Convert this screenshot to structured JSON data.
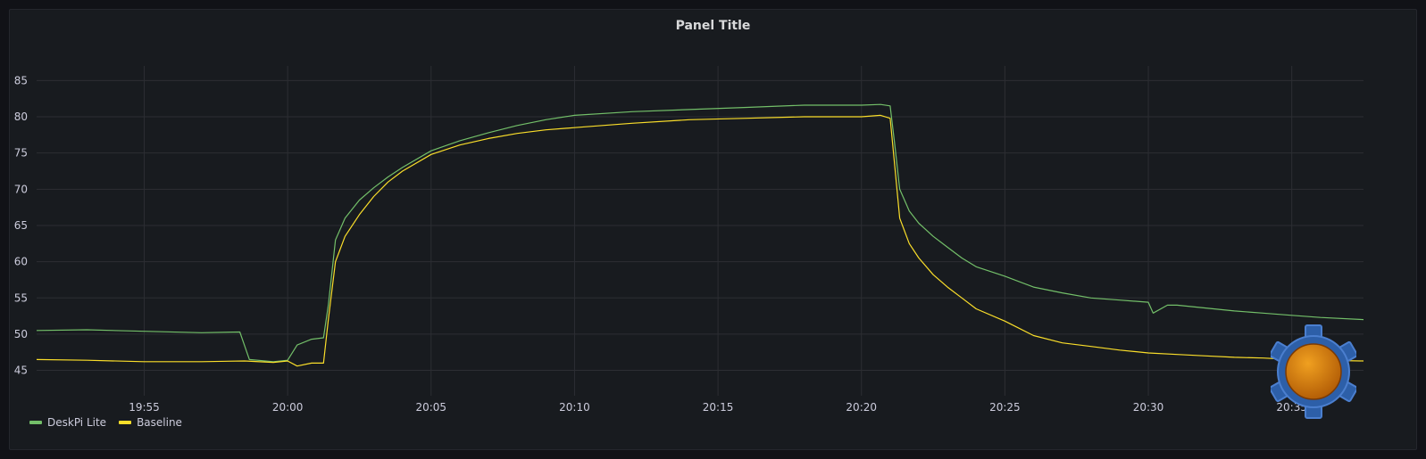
{
  "panel": {
    "title": "Panel Title"
  },
  "colors": {
    "background": "#181b1f",
    "grid": "#2c2e33",
    "axis_text": "#ccccdc",
    "series_deskpi": "#73bf69",
    "series_baseline": "#fade2a"
  },
  "chart_data": {
    "type": "line",
    "title": "Panel Title",
    "xlabel": "",
    "ylabel": "",
    "x_ticks": [
      "19:55",
      "20:00",
      "20:05",
      "20:10",
      "20:15",
      "20:20",
      "20:25",
      "20:30",
      "20:35"
    ],
    "y_ticks": [
      45,
      50,
      55,
      60,
      65,
      70,
      75,
      80,
      85
    ],
    "xlim": [
      "19:51:15",
      "20:37:30"
    ],
    "ylim": [
      41.5,
      88
    ],
    "grid": true,
    "legend_position": "bottom-left",
    "series": [
      {
        "name": "DeskPi Lite",
        "color": "#73bf69",
        "points": [
          [
            "19:51:15",
            50.5
          ],
          [
            "19:53:00",
            50.6
          ],
          [
            "19:55:00",
            50.4
          ],
          [
            "19:57:00",
            50.2
          ],
          [
            "19:58:20",
            50.3
          ],
          [
            "19:58:40",
            46.5
          ],
          [
            "19:59:30",
            46.2
          ],
          [
            "20:00:00",
            46.4
          ],
          [
            "20:00:20",
            48.5
          ],
          [
            "20:00:50",
            49.3
          ],
          [
            "20:01:15",
            49.5
          ],
          [
            "20:01:25",
            54.0
          ],
          [
            "20:01:40",
            63.0
          ],
          [
            "20:02:00",
            66.0
          ],
          [
            "20:02:30",
            68.5
          ],
          [
            "20:03:00",
            70.2
          ],
          [
            "20:03:30",
            71.7
          ],
          [
            "20:04:00",
            73.0
          ],
          [
            "20:05:00",
            75.3
          ],
          [
            "20:06:00",
            76.7
          ],
          [
            "20:07:00",
            77.8
          ],
          [
            "20:08:00",
            78.8
          ],
          [
            "20:09:00",
            79.6
          ],
          [
            "20:10:00",
            80.2
          ],
          [
            "20:12:00",
            80.7
          ],
          [
            "20:14:00",
            81.0
          ],
          [
            "20:16:00",
            81.3
          ],
          [
            "20:18:00",
            81.6
          ],
          [
            "20:20:00",
            81.6
          ],
          [
            "20:20:40",
            81.7
          ],
          [
            "20:21:00",
            81.5
          ],
          [
            "20:21:10",
            76.0
          ],
          [
            "20:21:20",
            70.0
          ],
          [
            "20:21:40",
            67.0
          ],
          [
            "20:22:00",
            65.3
          ],
          [
            "20:22:30",
            63.5
          ],
          [
            "20:23:00",
            62.0
          ],
          [
            "20:23:30",
            60.5
          ],
          [
            "20:24:00",
            59.3
          ],
          [
            "20:25:00",
            58.0
          ],
          [
            "20:26:00",
            56.5
          ],
          [
            "20:27:00",
            55.7
          ],
          [
            "20:28:00",
            55.0
          ],
          [
            "20:29:00",
            54.7
          ],
          [
            "20:30:00",
            54.4
          ],
          [
            "20:30:10",
            52.9
          ],
          [
            "20:30:40",
            54.0
          ],
          [
            "20:31:00",
            54.0
          ],
          [
            "20:32:00",
            53.6
          ],
          [
            "20:33:00",
            53.2
          ],
          [
            "20:34:00",
            52.9
          ],
          [
            "20:35:00",
            52.6
          ],
          [
            "20:36:00",
            52.3
          ],
          [
            "20:37:30",
            52.0
          ]
        ]
      },
      {
        "name": "Baseline",
        "color": "#fade2a",
        "points": [
          [
            "19:51:15",
            46.5
          ],
          [
            "19:53:00",
            46.4
          ],
          [
            "19:55:00",
            46.2
          ],
          [
            "19:57:00",
            46.2
          ],
          [
            "19:58:30",
            46.3
          ],
          [
            "19:59:30",
            46.1
          ],
          [
            "20:00:00",
            46.3
          ],
          [
            "20:00:20",
            45.6
          ],
          [
            "20:00:50",
            46.0
          ],
          [
            "20:01:15",
            46.0
          ],
          [
            "20:01:25",
            52.0
          ],
          [
            "20:01:40",
            60.0
          ],
          [
            "20:02:00",
            63.5
          ],
          [
            "20:02:30",
            66.5
          ],
          [
            "20:03:00",
            69.0
          ],
          [
            "20:03:30",
            71.0
          ],
          [
            "20:04:00",
            72.5
          ],
          [
            "20:05:00",
            74.8
          ],
          [
            "20:06:00",
            76.1
          ],
          [
            "20:07:00",
            77.0
          ],
          [
            "20:08:00",
            77.7
          ],
          [
            "20:09:00",
            78.2
          ],
          [
            "20:10:00",
            78.5
          ],
          [
            "20:12:00",
            79.1
          ],
          [
            "20:14:00",
            79.6
          ],
          [
            "20:16:00",
            79.8
          ],
          [
            "20:18:00",
            80.0
          ],
          [
            "20:20:00",
            80.0
          ],
          [
            "20:20:40",
            80.2
          ],
          [
            "20:21:00",
            79.8
          ],
          [
            "20:21:10",
            73.0
          ],
          [
            "20:21:20",
            66.0
          ],
          [
            "20:21:40",
            62.5
          ],
          [
            "20:22:00",
            60.5
          ],
          [
            "20:22:30",
            58.2
          ],
          [
            "20:23:00",
            56.5
          ],
          [
            "20:23:30",
            55.0
          ],
          [
            "20:24:00",
            53.5
          ],
          [
            "20:25:00",
            51.8
          ],
          [
            "20:26:00",
            49.8
          ],
          [
            "20:27:00",
            48.8
          ],
          [
            "20:28:00",
            48.3
          ],
          [
            "20:29:00",
            47.8
          ],
          [
            "20:30:00",
            47.4
          ],
          [
            "20:31:00",
            47.2
          ],
          [
            "20:32:00",
            47.0
          ],
          [
            "20:33:00",
            46.8
          ],
          [
            "20:34:00",
            46.7
          ],
          [
            "20:35:00",
            46.5
          ],
          [
            "20:36:00",
            46.4
          ],
          [
            "20:37:30",
            46.3
          ]
        ]
      }
    ]
  }
}
